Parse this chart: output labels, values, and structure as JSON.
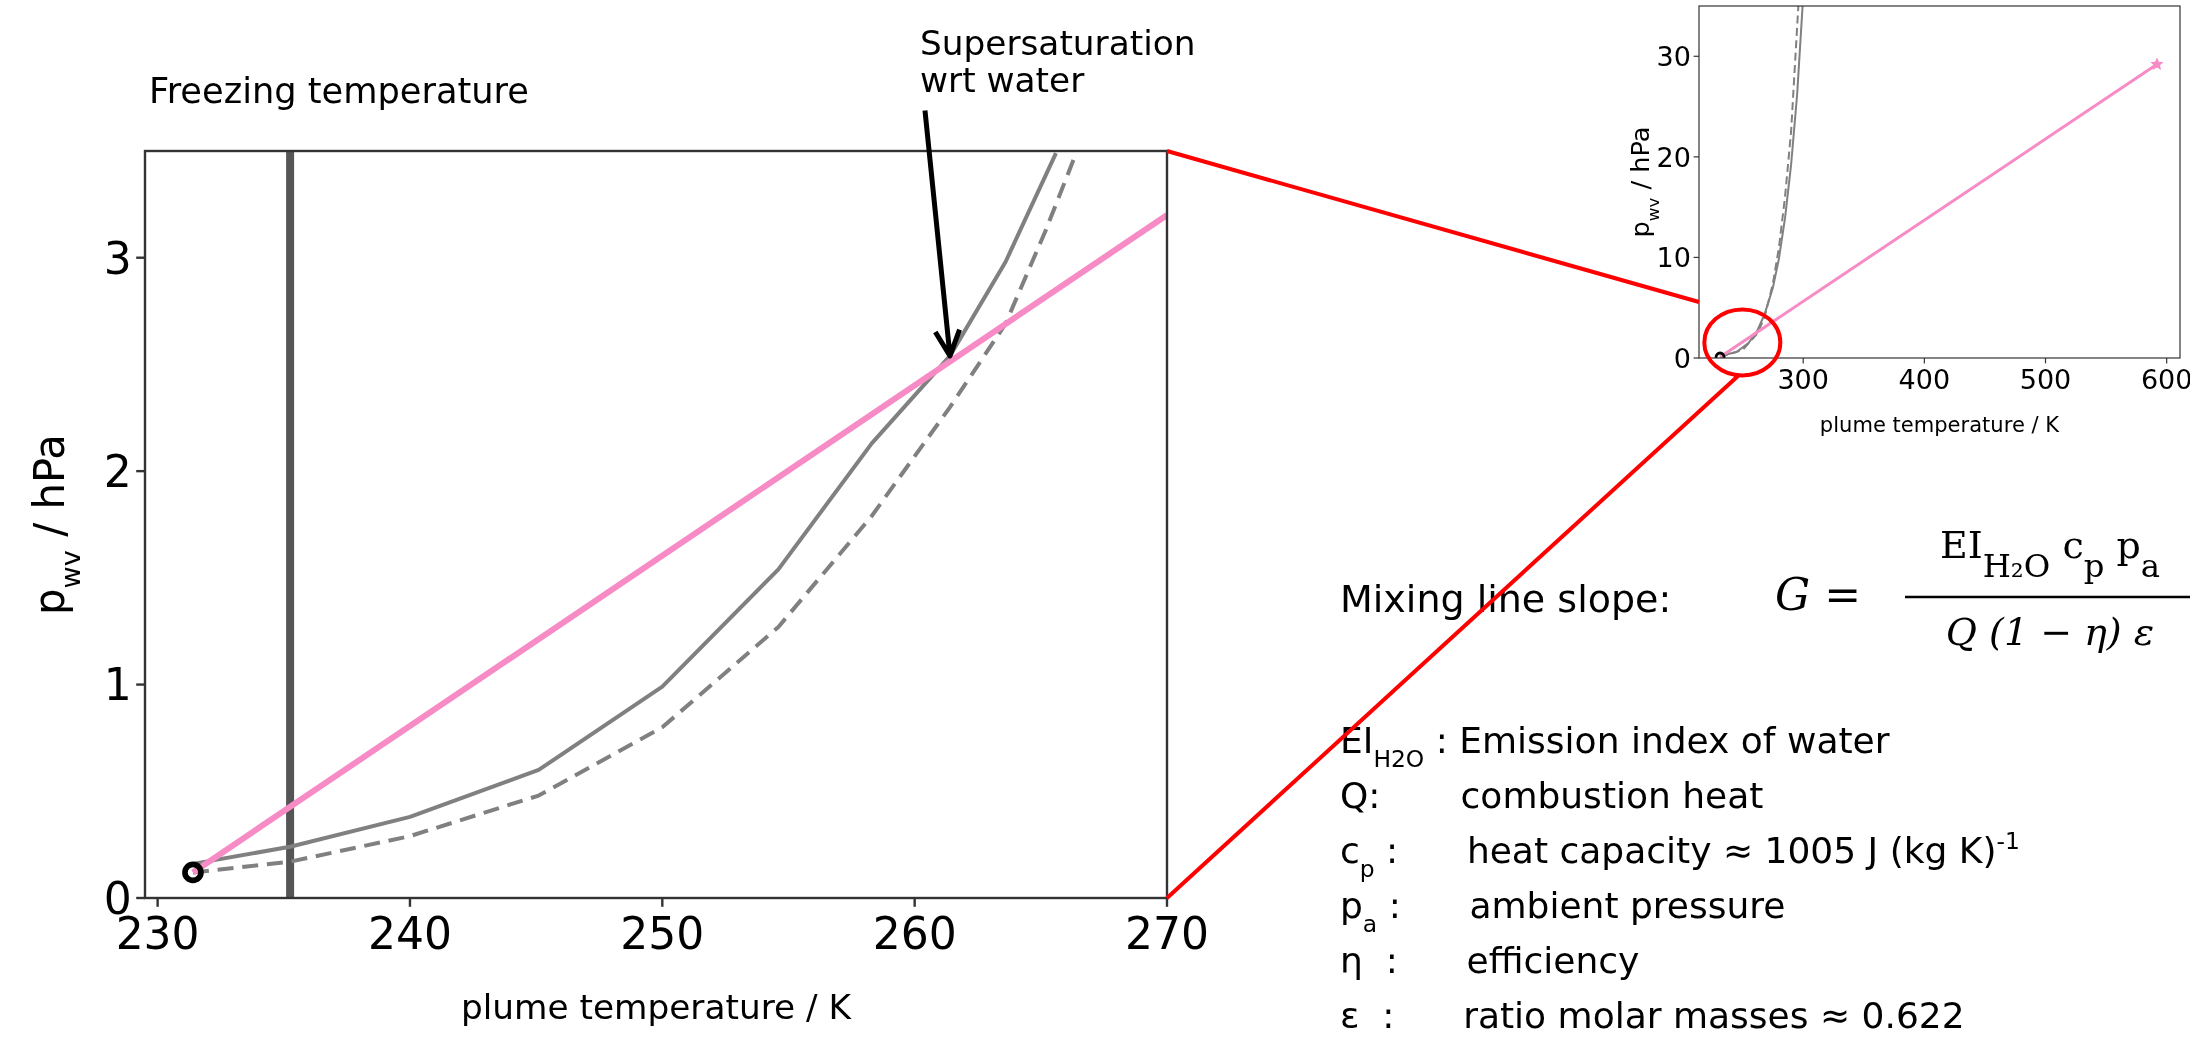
{
  "chart_data": [
    {
      "type": "line",
      "xlabel": "plume temperature / K",
      "ylabel": "p$_{wv}$ / hPa",
      "xlim": [
        229.5,
        270
      ],
      "ylim": [
        0,
        3.5
      ],
      "xticks": [
        230,
        240,
        250,
        260,
        270
      ],
      "yticks": [
        0,
        1,
        2,
        3
      ],
      "grid": false,
      "series": [
        {
          "color": "#808080",
          "line_style": "solid",
          "x": [
            231.4,
            235.25,
            240,
            245.1,
            250,
            254.6,
            258.3,
            261.4,
            263.6,
            265.6
          ],
          "values": [
            0.16,
            0.24,
            0.38,
            0.6,
            0.99,
            1.54,
            2.13,
            2.54,
            2.98,
            3.49
          ]
        },
        {
          "color": "#808080",
          "line_style": "dashed",
          "x": [
            231.4,
            235.25,
            240,
            245.1,
            250,
            254.6,
            258.3,
            261.4,
            263.6,
            265.2,
            266.4
          ],
          "values": [
            0.12,
            0.17,
            0.29,
            0.48,
            0.8,
            1.27,
            1.79,
            2.3,
            2.69,
            3.13,
            3.49
          ]
        },
        {
          "color": "#f78bc6",
          "line_style": "solid",
          "x": [
            231.4,
            270
          ],
          "values": [
            0.12,
            3.2
          ]
        },
        {
          "type": "scatter",
          "color": "#000000",
          "marker": "circle",
          "x": [
            231.4
          ],
          "values": [
            0.12
          ]
        }
      ],
      "ref_lines": [
        {
          "axis": "x",
          "value": 235.25,
          "label": "Freezing temperature",
          "color": "#555555"
        }
      ],
      "annotations": [
        {
          "text": "Supersaturation wrt water",
          "x": 261.4,
          "y": 2.54
        },
        "Mixing line slope:",
        "G =",
        "EI$_{H₂O}$ c$_{p}$ p$_{a}$",
        "Q (1 − η) ε",
        "EI$_{H2O}$ : Emission index of water",
        "Q:       combustion heat",
        "c$_{p}$ :      heat capacity ≈ 1005 J (kg K)$^{-1}$",
        "p$_{a}$ :      ambient pressure",
        "η  :      efficiency",
        "ε  :      ratio molar masses ≈ 0.622"
      ]
    },
    {
      "type": "line",
      "xlabel": "plume temperature / K",
      "ylabel": "p$_{wv}$ / hPa",
      "xlim": [
        214,
        611
      ],
      "ylim": [
        0,
        35
      ],
      "xticks": [
        300,
        400,
        500,
        600
      ],
      "yticks": [
        0,
        10,
        20,
        30
      ],
      "grid": false,
      "series": [
        {
          "color": "#808080",
          "line_style": "solid",
          "x": [
            231.4,
            245,
            255,
            262,
            268,
            275,
            280,
            285,
            290,
            295,
            299.5
          ],
          "values": [
            0.2,
            0.6,
            1.5,
            2.7,
            4.3,
            7,
            9.9,
            13.9,
            19.2,
            26.2,
            35
          ]
        },
        {
          "color": "#808080",
          "line_style": "dashed",
          "x": [
            231.4,
            250,
            262,
            268,
            275,
            280,
            285,
            290,
            296
          ],
          "values": [
            0.1,
            0.8,
            2.4,
            4,
            7.4,
            11,
            16,
            22.5,
            35
          ]
        },
        {
          "color": "#f78bc6",
          "line_style": "solid",
          "x": [
            231.4,
            592
          ],
          "values": [
            0.1,
            29.2
          ]
        },
        {
          "type": "scatter",
          "color": "#f78bc6",
          "marker": "star",
          "x": [
            592
          ],
          "values": [
            29.2
          ]
        },
        {
          "type": "scatter",
          "color": "#000000",
          "marker": "circle",
          "x": [
            231.4
          ],
          "values": [
            0.1
          ]
        }
      ]
    }
  ]
}
